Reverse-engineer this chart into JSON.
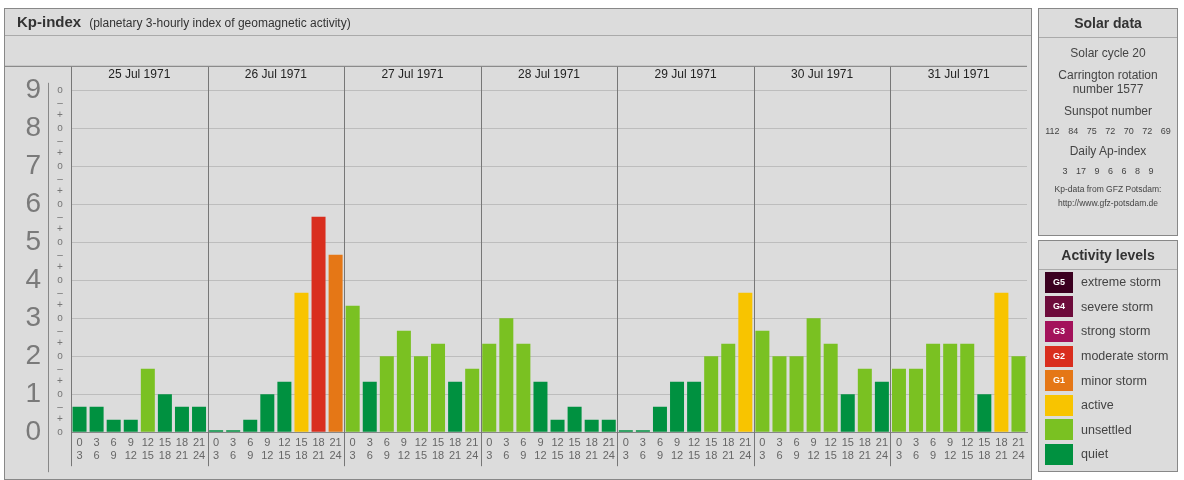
{
  "chart_data": [
    {
      "type": "bar",
      "title": "Kp-index",
      "subtitle": "(planetary 3-hourly index of geomagnetic activity)",
      "categories": [
        "0\n3",
        "3\n6",
        "6\n9",
        "9\n12",
        "12\n15",
        "15\n18",
        "18\n21",
        "21\n24",
        "0\n3",
        "3\n6",
        "6\n9",
        "9\n12",
        "12\n15",
        "15\n18",
        "18\n21",
        "21\n24",
        "0\n3",
        "3\n6",
        "6\n9",
        "9\n12",
        "12\n15",
        "15\n18",
        "18\n21",
        "21\n24",
        "0\n3",
        "3\n6",
        "6\n9",
        "9\n12",
        "12\n15",
        "15\n18",
        "18\n21",
        "21\n24",
        "0\n3",
        "3\n6",
        "6\n9",
        "9\n12",
        "12\n15",
        "15\n18",
        "18\n21",
        "21\n24",
        "0\n3",
        "3\n6",
        "6\n9",
        "9\n12",
        "12\n15",
        "15\n18",
        "18\n21",
        "21\n24",
        "0\n3",
        "3\n6",
        "6\n9",
        "9\n12",
        "12\n15",
        "15\n18",
        "18\n21",
        "21\n24"
      ],
      "annotations": [
        "25 Jul 1971",
        "26 Jul 1971",
        "27 Jul 1971",
        "28 Jul 1971",
        "29 Jul 1971",
        "30 Jul 1971",
        "31 Jul 1971"
      ],
      "stacked": true,
      "legend": "right",
      "legend_title": "Activity levels",
      "grid": "y",
      "ylim": [
        0,
        9.2
      ],
      "yticks": [
        0,
        1,
        2,
        3,
        4,
        5,
        6,
        7,
        8,
        9
      ],
      "y2_categories": [
        "o",
        "–",
        "+",
        "o",
        "–",
        "+",
        "o",
        "–",
        "+",
        "o",
        "–",
        "+",
        "o",
        "–",
        "+",
        "o",
        "–",
        "+",
        "o",
        "–",
        "+",
        "o",
        "–",
        "+",
        "o",
        "–",
        "+",
        "o"
      ],
      "series": [
        {
          "name": "G5 extreme storm",
          "color": "#3b0020",
          "values": [
            null,
            null,
            null,
            null,
            null,
            null,
            null,
            null,
            null,
            null,
            null,
            null,
            null,
            null,
            null,
            null,
            null,
            null,
            null,
            null,
            null,
            null,
            null,
            null,
            null,
            null,
            null,
            null,
            null,
            null,
            null,
            null,
            null,
            null,
            null,
            null,
            null,
            null,
            null,
            null,
            null,
            null,
            null,
            null,
            null,
            null,
            null,
            null,
            null,
            null,
            null,
            null,
            null,
            null,
            null,
            null
          ]
        },
        {
          "name": "G4 severe storm",
          "color": "#6d0b3b",
          "values": [
            null,
            null,
            null,
            null,
            null,
            null,
            null,
            null,
            null,
            null,
            null,
            null,
            null,
            null,
            null,
            null,
            null,
            null,
            null,
            null,
            null,
            null,
            null,
            null,
            null,
            null,
            null,
            null,
            null,
            null,
            null,
            null,
            null,
            null,
            null,
            null,
            null,
            null,
            null,
            null,
            null,
            null,
            null,
            null,
            null,
            null,
            null,
            null,
            null,
            null,
            null,
            null,
            null,
            null,
            null,
            null
          ]
        },
        {
          "name": "G3 strong storm",
          "color": "#a3125b",
          "values": [
            null,
            null,
            null,
            null,
            null,
            null,
            null,
            null,
            null,
            null,
            null,
            null,
            null,
            null,
            null,
            null,
            null,
            null,
            null,
            null,
            null,
            null,
            null,
            null,
            null,
            null,
            null,
            null,
            null,
            null,
            null,
            null,
            null,
            null,
            null,
            null,
            null,
            null,
            null,
            null,
            null,
            null,
            null,
            null,
            null,
            null,
            null,
            null,
            null,
            null,
            null,
            null,
            null,
            null,
            null,
            null
          ]
        },
        {
          "name": "G2 moderate storm",
          "color": "#d92e1e",
          "values": [
            null,
            null,
            null,
            null,
            null,
            null,
            null,
            null,
            null,
            null,
            null,
            null,
            null,
            null,
            5.67,
            null,
            null,
            null,
            null,
            null,
            null,
            null,
            null,
            null,
            null,
            null,
            null,
            null,
            null,
            null,
            null,
            null,
            null,
            null,
            null,
            null,
            null,
            null,
            null,
            null,
            null,
            null,
            null,
            null,
            null,
            null,
            null,
            null,
            null,
            null,
            null,
            null,
            null,
            null,
            null,
            null
          ]
        },
        {
          "name": "G1 minor storm",
          "color": "#e57716",
          "values": [
            null,
            null,
            null,
            null,
            null,
            null,
            null,
            null,
            null,
            null,
            null,
            null,
            null,
            null,
            null,
            4.67,
            null,
            null,
            null,
            null,
            null,
            null,
            null,
            null,
            null,
            null,
            null,
            null,
            null,
            null,
            null,
            null,
            null,
            null,
            null,
            null,
            null,
            null,
            null,
            null,
            null,
            null,
            null,
            null,
            null,
            null,
            null,
            null,
            null,
            null,
            null,
            null,
            null,
            null,
            null,
            null
          ]
        },
        {
          "name": "active",
          "color": "#f8c400",
          "values": [
            null,
            null,
            null,
            null,
            null,
            null,
            null,
            null,
            null,
            null,
            null,
            null,
            null,
            3.67,
            null,
            null,
            null,
            null,
            null,
            null,
            null,
            null,
            null,
            null,
            null,
            null,
            null,
            null,
            null,
            null,
            null,
            null,
            null,
            null,
            null,
            null,
            null,
            null,
            null,
            3.67,
            null,
            null,
            null,
            null,
            null,
            null,
            null,
            null,
            null,
            null,
            null,
            null,
            null,
            null,
            3.67,
            null
          ]
        },
        {
          "name": "unsettled",
          "color": "#7ac122",
          "values": [
            null,
            null,
            null,
            null,
            1.67,
            null,
            null,
            null,
            null,
            null,
            null,
            null,
            null,
            null,
            null,
            null,
            3.33,
            null,
            2,
            2.67,
            2,
            2.33,
            null,
            1.67,
            2.33,
            3,
            2.33,
            null,
            null,
            null,
            null,
            null,
            null,
            null,
            null,
            null,
            null,
            2,
            2.33,
            null,
            2.67,
            2,
            2,
            3,
            2.33,
            null,
            1.67,
            null,
            1.67,
            1.67,
            2.33,
            2.33,
            2.33,
            null,
            null,
            2
          ]
        },
        {
          "name": "quiet",
          "color": "#009140",
          "values": [
            0.67,
            0.67,
            0.33,
            0.33,
            null,
            1,
            0.67,
            0.67,
            0,
            0,
            0.33,
            1,
            1.33,
            null,
            null,
            null,
            null,
            1.33,
            null,
            null,
            null,
            null,
            1.33,
            null,
            null,
            null,
            null,
            1.33,
            0.33,
            0.67,
            0.33,
            0.33,
            0,
            0,
            0.67,
            1.33,
            1.33,
            null,
            null,
            null,
            null,
            null,
            null,
            null,
            null,
            1,
            null,
            1.33,
            null,
            null,
            null,
            null,
            null,
            1,
            null,
            null
          ]
        }
      ]
    },
    {
      "type": "other",
      "title": "Solar data",
      "annotations": [
        "Solar cycle 20",
        "Carrington rotation number 1577",
        "Sunspot number",
        "112 84 75 72 70 72 69",
        "Daily Ap-index",
        "3 17 9 6 6 8 9",
        "Kp-data from GFZ Potsdam:",
        "http://www.gfz-potsdam.de"
      ]
    }
  ]
}
